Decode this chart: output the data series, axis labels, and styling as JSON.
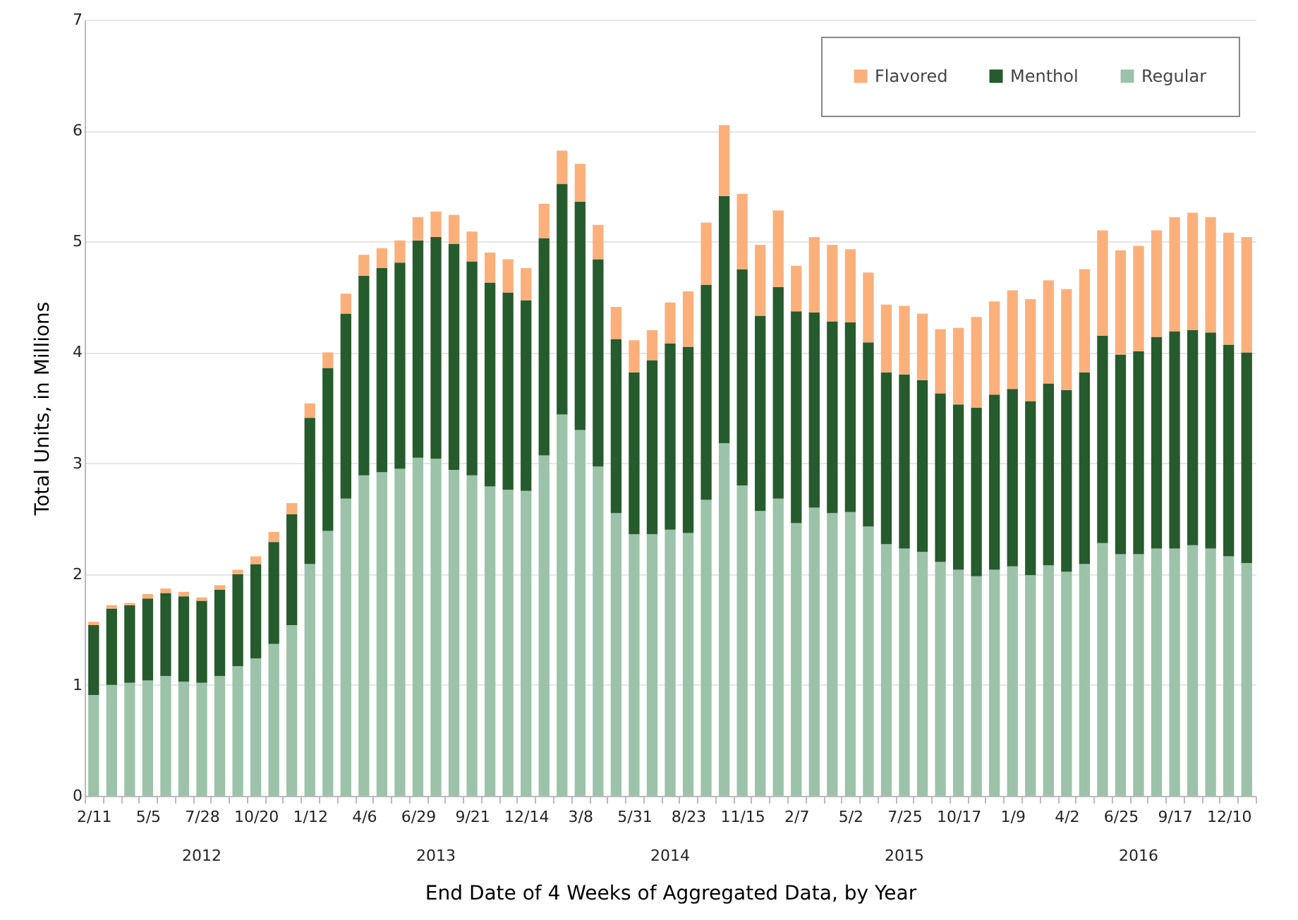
{
  "chart_data": {
    "type": "bar",
    "stacked": true,
    "xlabel": "End Date of 4 Weeks of Aggregated Data, by Year",
    "ylabel": "Total Units, in Millions",
    "categories": [
      "2/11",
      null,
      null,
      "5/5",
      null,
      null,
      "7/28",
      null,
      null,
      "10/20",
      null,
      null,
      "1/12",
      null,
      null,
      "4/6",
      null,
      null,
      "6/29",
      null,
      null,
      "9/21",
      null,
      null,
      "12/14",
      null,
      null,
      "3/8",
      null,
      null,
      "5/31",
      null,
      null,
      "8/23",
      null,
      null,
      "11/15",
      null,
      null,
      "2/7",
      null,
      null,
      "5/2",
      null,
      null,
      "7/25",
      null,
      null,
      "10/17",
      null,
      null,
      "1/9",
      null,
      null,
      "4/2",
      null,
      null,
      "6/25",
      null,
      null,
      "9/17",
      null,
      null,
      "12/10",
      null
    ],
    "series": [
      {
        "name": "Regular",
        "color": "#9cc3aa",
        "values": [
          0.91,
          1.0,
          1.02,
          1.04,
          1.08,
          1.03,
          1.02,
          1.08,
          1.17,
          1.24,
          1.37,
          1.54,
          2.09,
          2.39,
          2.68,
          2.89,
          2.92,
          2.95,
          3.05,
          3.04,
          2.94,
          2.89,
          2.79,
          2.76,
          2.75,
          3.07,
          3.44,
          3.3,
          2.97,
          2.55,
          2.36,
          2.36,
          2.4,
          2.37,
          2.67,
          3.18,
          2.8,
          2.57,
          2.68,
          2.46,
          2.6,
          2.55,
          2.56,
          2.43,
          2.27,
          2.23,
          2.2,
          2.11,
          2.04,
          1.98,
          2.04,
          2.07,
          1.99,
          2.08,
          2.02,
          2.09,
          2.28,
          2.18,
          2.18,
          2.23,
          2.23,
          2.26,
          2.23,
          2.16,
          2.1
        ]
      },
      {
        "name": "Menthol",
        "color": "#265b2d",
        "values": [
          0.63,
          0.69,
          0.7,
          0.74,
          0.75,
          0.77,
          0.74,
          0.78,
          0.83,
          0.85,
          0.92,
          1.0,
          1.32,
          1.47,
          1.67,
          1.8,
          1.84,
          1.86,
          1.96,
          2.0,
          2.04,
          1.93,
          1.84,
          1.78,
          1.72,
          1.96,
          2.08,
          2.06,
          1.87,
          1.57,
          1.46,
          1.57,
          1.68,
          1.68,
          1.94,
          2.23,
          1.95,
          1.76,
          1.91,
          1.91,
          1.76,
          1.73,
          1.71,
          1.66,
          1.55,
          1.57,
          1.55,
          1.52,
          1.49,
          1.52,
          1.58,
          1.6,
          1.57,
          1.64,
          1.64,
          1.73,
          1.87,
          1.8,
          1.83,
          1.91,
          1.96,
          1.94,
          1.95,
          1.91,
          1.9
        ]
      },
      {
        "name": "Flavored",
        "color": "#fbb07b",
        "values": [
          0.03,
          0.03,
          0.02,
          0.04,
          0.04,
          0.04,
          0.03,
          0.04,
          0.04,
          0.07,
          0.09,
          0.1,
          0.13,
          0.14,
          0.18,
          0.19,
          0.18,
          0.2,
          0.21,
          0.23,
          0.26,
          0.27,
          0.27,
          0.3,
          0.29,
          0.31,
          0.3,
          0.34,
          0.31,
          0.29,
          0.29,
          0.27,
          0.37,
          0.5,
          0.56,
          0.64,
          0.68,
          0.64,
          0.69,
          0.41,
          0.68,
          0.69,
          0.66,
          0.63,
          0.61,
          0.62,
          0.6,
          0.58,
          0.69,
          0.82,
          0.84,
          0.89,
          0.92,
          0.93,
          0.91,
          0.93,
          0.95,
          0.94,
          0.95,
          0.96,
          1.03,
          1.06,
          1.04,
          1.01,
          1.04
        ]
      }
    ],
    "ylim": [
      0,
      7
    ],
    "yticks": [
      0,
      1,
      2,
      3,
      4,
      5,
      6,
      7
    ],
    "grid": "y",
    "legend": "top right",
    "annotations": [
      "2012",
      "2013",
      "2014",
      "2015",
      "2016"
    ]
  }
}
